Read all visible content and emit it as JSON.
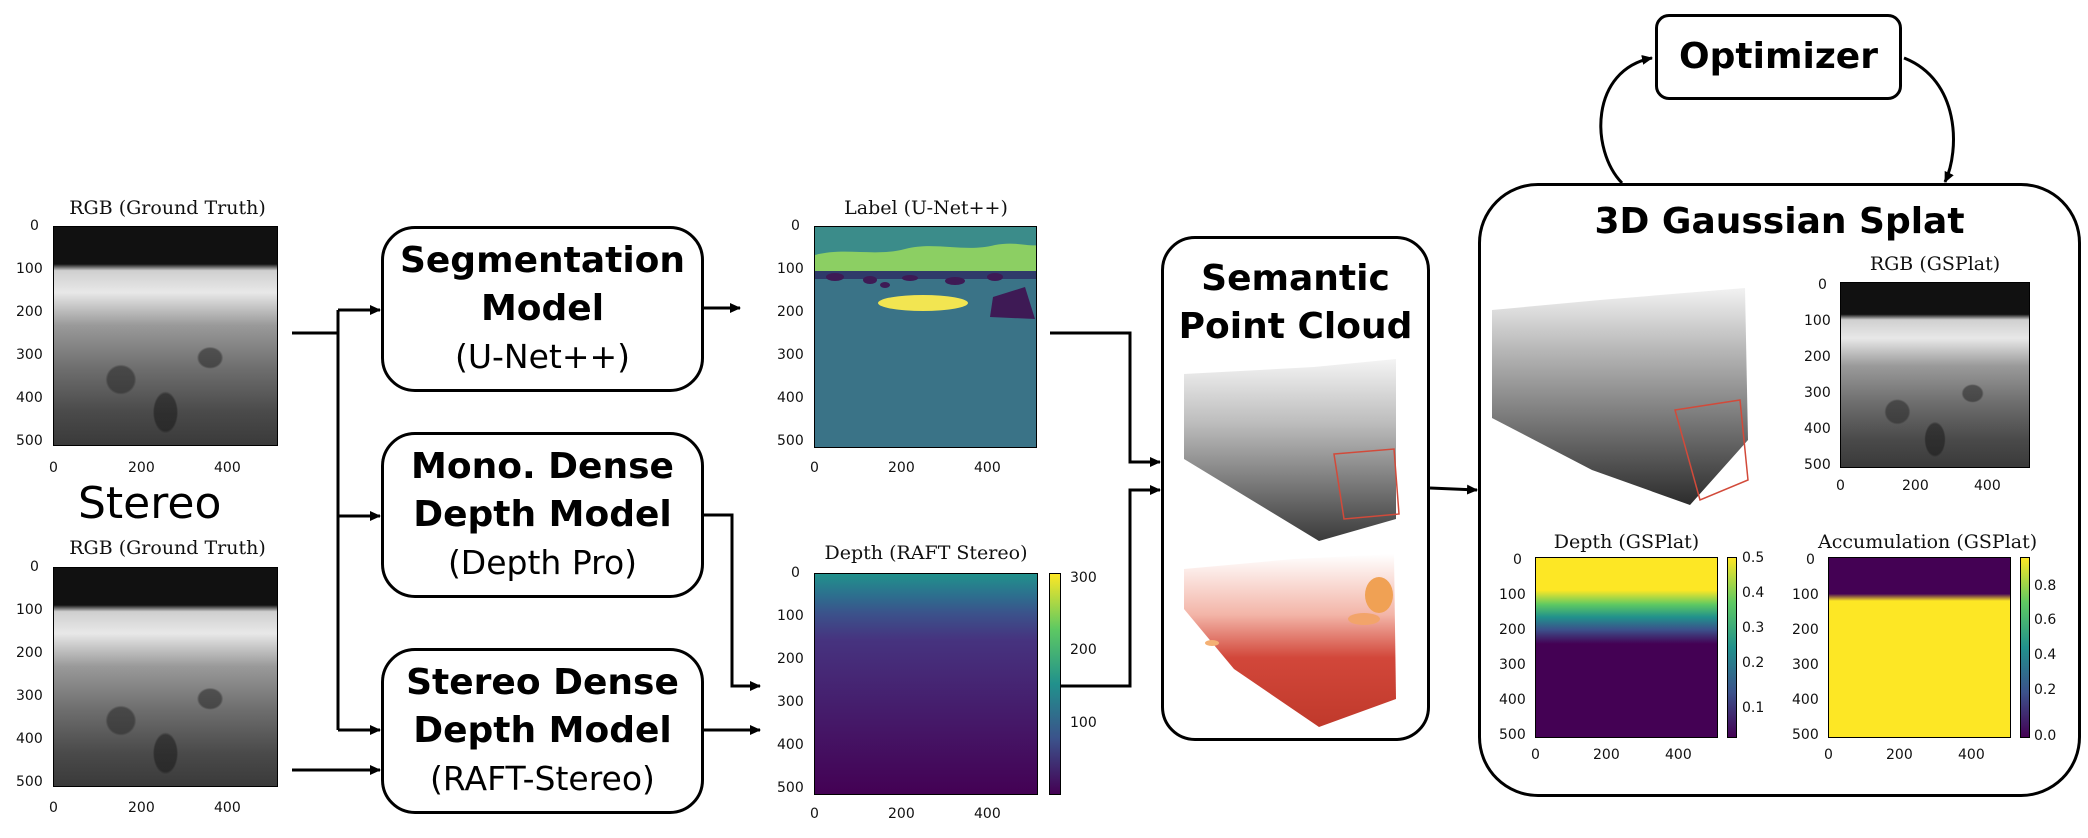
{
  "inputs": {
    "top_title": "RGB (Ground Truth)",
    "bottom_title": "RGB (Ground Truth)",
    "stereo_label": "Stereo",
    "y_ticks": [
      "0",
      "100",
      "200",
      "300",
      "400",
      "500"
    ],
    "x_ticks": [
      "0",
      "200",
      "400"
    ]
  },
  "models": {
    "segmentation": {
      "line1": "Segmentation",
      "line2": "Model",
      "line3": "(U-Net++)"
    },
    "mono": {
      "line1": "Mono. Dense",
      "line2": "Depth Model",
      "line3": "(Depth Pro)"
    },
    "stereo": {
      "line1": "Stereo Dense",
      "line2": "Depth Model",
      "line3": "(RAFT-Stereo)"
    }
  },
  "outputs": {
    "label_title": "Label (U-Net++)",
    "depth_title": "Depth (RAFT Stereo)",
    "depth_colorbar_ticks": [
      "300",
      "200",
      "100"
    ],
    "label_colors": {
      "sky": "#3b8c8a",
      "ridge": "#8ccf63",
      "ground": "#3a7387",
      "rocks": "#3e1a55",
      "highlight": "#f2e551"
    }
  },
  "point_cloud": {
    "title_line1": "Semantic",
    "title_line2": "Point Cloud"
  },
  "optimizer": {
    "label": "Optimizer"
  },
  "splat": {
    "title": "3D Gaussian Splat",
    "rgb_title": "RGB (GSPlat)",
    "depth_title": "Depth (GSPlat)",
    "accum_title": "Accumulation (GSPlat)",
    "depth_cbar_ticks": [
      "0.5",
      "0.4",
      "0.3",
      "0.2",
      "0.1"
    ],
    "accum_cbar_ticks": [
      "0.8",
      "0.6",
      "0.4",
      "0.2",
      "0.0"
    ]
  },
  "colors": {
    "viridis_dark": "#440154",
    "viridis_teal": "#21918c",
    "viridis_yellow": "#fde725",
    "depth_red": "#c8372b"
  }
}
